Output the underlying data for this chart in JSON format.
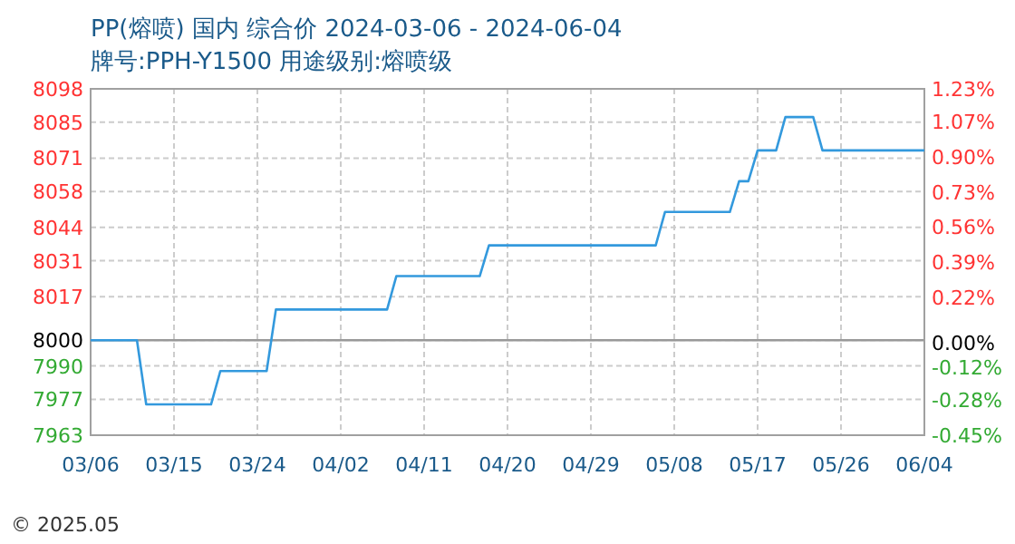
{
  "chart_data": {
    "type": "line",
    "title": "PP(熔喷) 国内 综合价 2024-03-06 - 2024-06-04",
    "subtitle": "牌号:PPH-Y1500 用途级别:熔喷级",
    "x": [
      "2024-03-06",
      "2024-03-11",
      "2024-03-12",
      "2024-03-19",
      "2024-03-20",
      "2024-03-25",
      "2024-03-26",
      "2024-04-07",
      "2024-04-08",
      "2024-04-17",
      "2024-04-18",
      "2024-05-06",
      "2024-05-07",
      "2024-05-14",
      "2024-05-15",
      "2024-05-16",
      "2024-05-17",
      "2024-05-19",
      "2024-05-20",
      "2024-05-23",
      "2024-05-24",
      "2024-06-04"
    ],
    "series": [
      {
        "color": "#3399dd",
        "values": [
          8000,
          8000,
          7975,
          7975,
          7988,
          7988,
          8012,
          8012,
          8025,
          8025,
          8037,
          8037,
          8050,
          8050,
          8062,
          8062,
          8074,
          8074,
          8087,
          8087,
          8074,
          8074
        ]
      }
    ],
    "xlim": [
      "2024-03-06",
      "2024-06-04"
    ],
    "xticks": [
      {
        "value": "2024-03-06",
        "label": "03/06"
      },
      {
        "value": "2024-03-15",
        "label": "03/15"
      },
      {
        "value": "2024-03-24",
        "label": "03/24"
      },
      {
        "value": "2024-04-02",
        "label": "04/02"
      },
      {
        "value": "2024-04-11",
        "label": "04/11"
      },
      {
        "value": "2024-04-20",
        "label": "04/20"
      },
      {
        "value": "2024-04-29",
        "label": "04/29"
      },
      {
        "value": "2024-05-08",
        "label": "05/08"
      },
      {
        "value": "2024-05-17",
        "label": "05/17"
      },
      {
        "value": "2024-05-26",
        "label": "05/26"
      },
      {
        "value": "2024-06-04",
        "label": "06/04"
      }
    ],
    "ylim": [
      7963,
      8098
    ],
    "yticks": [
      7963,
      7977,
      7990,
      8000,
      8017,
      8031,
      8044,
      8058,
      8071,
      8085,
      8098
    ],
    "y2lim": [
      -0.45,
      1.23
    ],
    "y2ticks": [
      {
        "value": -0.45,
        "label": "-0.45%"
      },
      {
        "value": -0.28,
        "label": "-0.28%"
      },
      {
        "value": -0.12,
        "label": "-0.12%"
      },
      {
        "value": 0,
        "label": "0.00%"
      },
      {
        "value": 0.22,
        "label": "0.22%"
      },
      {
        "value": 0.39,
        "label": "0.39%"
      },
      {
        "value": 0.56,
        "label": "0.56%"
      },
      {
        "value": 0.73,
        "label": "0.73%"
      },
      {
        "value": 0.9,
        "label": "0.90%"
      },
      {
        "value": 1.07,
        "label": "1.07%"
      },
      {
        "value": 1.23,
        "label": "1.23%"
      }
    ],
    "ref_lines": [
      {
        "axis": "y",
        "value": 8000,
        "color": "#999999",
        "line_style": "solid"
      }
    ],
    "grid": true,
    "line_style": "solid",
    "annotations": [
      "© 2025.05"
    ]
  }
}
